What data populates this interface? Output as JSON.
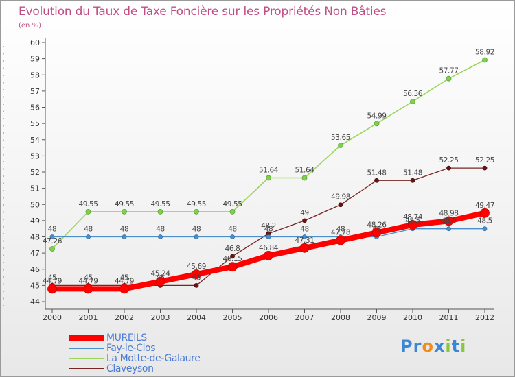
{
  "title": "Evolution du Taux de Taxe Foncière sur les Propriétés Non Bâties",
  "unit": "(en %)",
  "brand": {
    "text": "Proxiti",
    "colors": [
      "#3b86d6",
      "#3b86d6",
      "#f28c1e",
      "#3b86d6",
      "#8cc63f",
      "#3b86d6",
      "#8cc63f"
    ]
  },
  "chart_data": {
    "type": "line",
    "x": [
      2000,
      2001,
      2002,
      2003,
      2004,
      2005,
      2006,
      2007,
      2008,
      2009,
      2010,
      2011,
      2012
    ],
    "x_tick_labels": [
      "2000",
      "2001",
      "2002",
      "2003",
      "2004",
      "2005",
      "2006",
      "2007",
      "2008",
      "2009",
      "2010",
      "2011",
      "2012"
    ],
    "ylim": [
      44,
      60
    ],
    "y_ticks": [
      44,
      45,
      46,
      47,
      48,
      49,
      50,
      51,
      52,
      53,
      54,
      55,
      56,
      57,
      58,
      59,
      60
    ],
    "grid": false,
    "legend_position": "bottom-left",
    "series": [
      {
        "name": "MUREILS",
        "color": "#ff0000",
        "values": [
          44.79,
          44.79,
          44.79,
          45.24,
          45.69,
          46.15,
          46.84,
          47.31,
          47.78,
          48.26,
          48.74,
          48.98,
          49.47
        ],
        "labels": [
          "44.79",
          "44.79",
          "44.79",
          "45.24",
          "45.69",
          "46.15",
          "46.84",
          "47.31",
          "47.78",
          "48.26",
          "48.74",
          "48.98",
          "49.47"
        ]
      },
      {
        "name": "Fay-le-Clos",
        "color": "#4a8fc9",
        "values": [
          48,
          48,
          48,
          48,
          48,
          48,
          48,
          48,
          48,
          48,
          48.5,
          48.5,
          48.5
        ],
        "labels": [
          "48",
          "48",
          "48",
          "48",
          "48",
          "48",
          "48",
          "48",
          "48",
          "48",
          "48.5",
          "48.5",
          "48.5"
        ]
      },
      {
        "name": "La Motte-de-Galaure",
        "color": "#99d65c",
        "values": [
          47.26,
          49.55,
          49.55,
          49.55,
          49.55,
          49.55,
          51.64,
          51.64,
          53.65,
          54.99,
          56.36,
          57.77,
          58.92
        ],
        "labels": [
          "47.26",
          "49.55",
          "49.55",
          "49.55",
          "49.55",
          "49.55",
          "51.64",
          "51.64",
          "53.65",
          "54.99",
          "56.36",
          "57.77",
          "58.92"
        ]
      },
      {
        "name": "Claveyson",
        "color": "#7a2424",
        "values": [
          45,
          45,
          45,
          45,
          45,
          46.8,
          48.2,
          49,
          49.98,
          51.48,
          51.48,
          52.25,
          52.25
        ],
        "labels": [
          "45",
          "45",
          "45",
          "45",
          "45",
          "46.8",
          "48.2",
          "49",
          "49.98",
          "51.48",
          "51.48",
          "52.25",
          "52.25"
        ]
      }
    ]
  }
}
